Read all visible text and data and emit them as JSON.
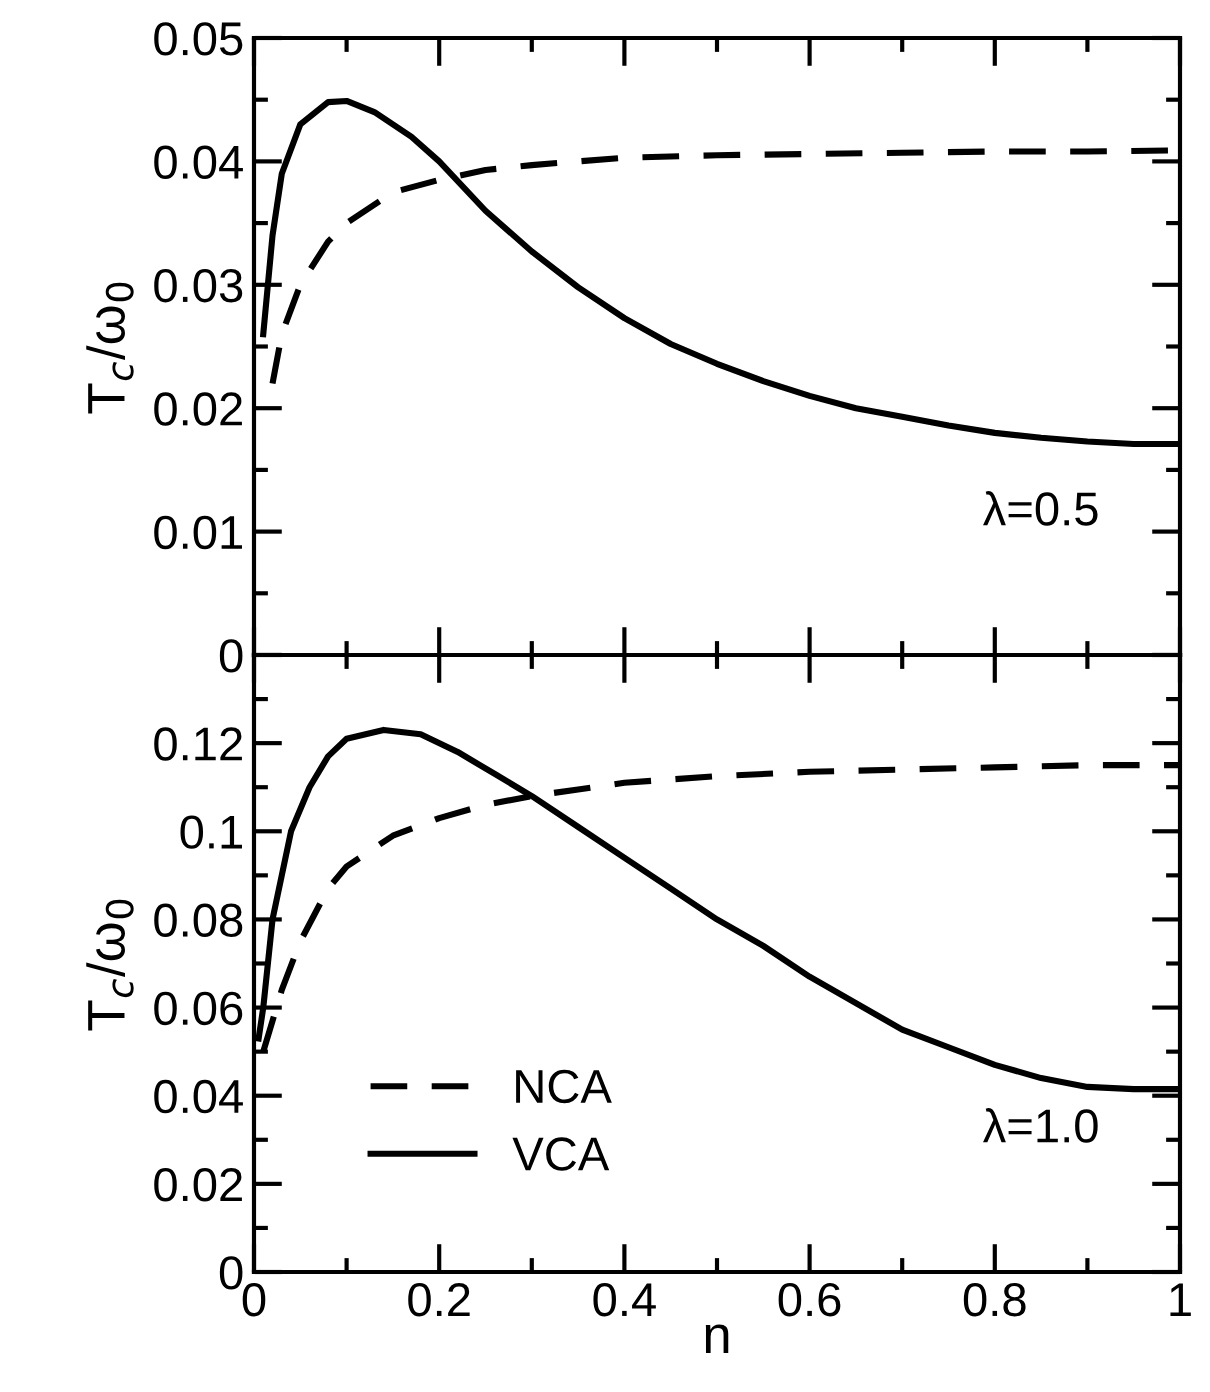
{
  "chart_data": [
    {
      "type": "line",
      "ylabel": "T$_{c}$/ω$_{0}$",
      "xlim": [
        0,
        1
      ],
      "xticks": [
        0,
        0.2,
        0.4,
        0.6,
        0.8,
        1
      ],
      "ylim": [
        0,
        0.05
      ],
      "yticks": [
        0,
        0.01,
        0.02,
        0.03,
        0.04,
        0.05
      ],
      "tick_labels": "y",
      "legend": false,
      "grid": false,
      "annotations": [
        "λ=0.5"
      ],
      "series": [
        {
          "color": "#000000",
          "line_style": "dashed",
          "x": [
            0.02,
            0.03,
            0.05,
            0.08,
            0.1,
            0.15,
            0.2,
            0.25,
            0.3,
            0.4,
            0.5,
            0.6,
            0.7,
            0.8,
            0.9,
            1.0
          ],
          "values": [
            0.022,
            0.026,
            0.03,
            0.0335,
            0.035,
            0.0375,
            0.0385,
            0.0393,
            0.0397,
            0.0403,
            0.0405,
            0.0406,
            0.0407,
            0.0408,
            0.0408,
            0.0409
          ]
        },
        {
          "color": "#000000",
          "line_style": "solid",
          "x": [
            0.01,
            0.02,
            0.03,
            0.05,
            0.08,
            0.1,
            0.13,
            0.17,
            0.2,
            0.25,
            0.3,
            0.35,
            0.4,
            0.45,
            0.5,
            0.55,
            0.6,
            0.65,
            0.7,
            0.75,
            0.8,
            0.85,
            0.9,
            0.95,
            1.0
          ],
          "values": [
            0.026,
            0.034,
            0.039,
            0.043,
            0.0448,
            0.0449,
            0.044,
            0.042,
            0.04,
            0.036,
            0.0327,
            0.0298,
            0.0273,
            0.0252,
            0.0236,
            0.0222,
            0.021,
            0.02,
            0.0193,
            0.0186,
            0.018,
            0.0176,
            0.0173,
            0.0171,
            0.0171
          ]
        }
      ]
    },
    {
      "type": "line",
      "xlabel": "n",
      "ylabel": "T$_{c}$/ω$_{0}$",
      "xlim": [
        0,
        1
      ],
      "xticks": [
        0,
        0.2,
        0.4,
        0.6,
        0.8,
        1
      ],
      "ylim": [
        0,
        0.14
      ],
      "yticks": [
        0,
        0.02,
        0.04,
        0.06,
        0.08,
        0.1,
        0.12,
        {
          "value": 0.14,
          "label": null
        }
      ],
      "legend": "bottom left",
      "grid": false,
      "annotations": [
        "λ=1.0"
      ],
      "series": [
        {
          "name": "NCA",
          "color": "#000000",
          "line_style": "dashed",
          "x": [
            0.01,
            0.02,
            0.03,
            0.05,
            0.08,
            0.1,
            0.15,
            0.2,
            0.25,
            0.3,
            0.35,
            0.4,
            0.5,
            0.6,
            0.7,
            0.8,
            0.9,
            1.0
          ],
          "values": [
            0.05,
            0.057,
            0.064,
            0.075,
            0.087,
            0.092,
            0.099,
            0.103,
            0.106,
            0.108,
            0.1095,
            0.111,
            0.1125,
            0.1135,
            0.114,
            0.1145,
            0.115,
            0.115
          ]
        },
        {
          "name": "VCA",
          "color": "#000000",
          "line_style": "solid",
          "x": [
            0.005,
            0.01,
            0.02,
            0.04,
            0.06,
            0.08,
            0.1,
            0.14,
            0.18,
            0.22,
            0.26,
            0.3,
            0.35,
            0.4,
            0.45,
            0.5,
            0.55,
            0.6,
            0.65,
            0.7,
            0.75,
            0.8,
            0.85,
            0.9,
            0.95,
            1.0
          ],
          "values": [
            0.053,
            0.06,
            0.08,
            0.1,
            0.11,
            0.117,
            0.121,
            0.123,
            0.122,
            0.118,
            0.113,
            0.108,
            0.101,
            0.094,
            0.087,
            0.08,
            0.074,
            0.067,
            0.061,
            0.055,
            0.051,
            0.047,
            0.044,
            0.042,
            0.0415,
            0.0415
          ]
        }
      ]
    }
  ]
}
